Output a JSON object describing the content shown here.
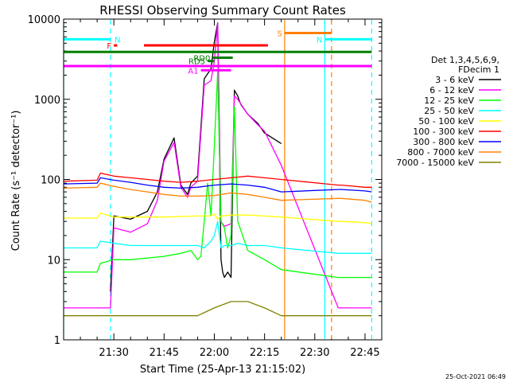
{
  "chart_data": {
    "type": "line",
    "title": "RHESSI Observing Summary Count Rates",
    "xlabel": "Start Time (25-Apr-13 21:15:02)",
    "ylabel": "Count Rate (s⁻¹ detector⁻¹)",
    "yscale": "log",
    "ylim": [
      1,
      10000
    ],
    "xlim_minutes": [
      0,
      95
    ],
    "x_ticks": [
      "21:30",
      "21:45",
      "22:00",
      "22:15",
      "22:30",
      "22:45"
    ],
    "y_ticks": [
      "1",
      "10",
      "100",
      "1000",
      "10000"
    ],
    "legend_header": [
      "Det 1,3,4,5,6,9,",
      "FDecim 1"
    ],
    "legend_position": "right",
    "footer": "25-Oct-2021 06:49",
    "series": [
      {
        "name": "3 - 6 keV",
        "color": "#000000",
        "x": [
          0,
          10,
          14,
          15,
          20,
          25,
          28,
          30,
          33,
          35,
          37,
          38,
          40,
          42,
          44,
          45,
          46,
          47,
          47.5,
          48,
          49,
          50,
          51,
          52,
          52.5,
          53,
          55,
          58,
          60,
          65
        ],
        "y": [
          null,
          null,
          4,
          35,
          32,
          40,
          70,
          180,
          330,
          85,
          65,
          90,
          110,
          1800,
          2400,
          5200,
          9000,
          10,
          7,
          6,
          7,
          6,
          1300,
          1100,
          950,
          850,
          650,
          500,
          380,
          280
        ]
      },
      {
        "name": "6 - 12 keV",
        "color": "#ff00ff",
        "x": [
          0,
          2,
          10,
          14,
          15,
          20,
          25,
          28,
          30,
          33,
          35,
          37,
          38,
          40,
          42,
          44,
          45,
          46,
          47,
          48,
          50,
          51,
          52,
          55,
          58,
          60,
          65,
          82,
          83,
          90,
          92
        ],
        "y": [
          2.5,
          2.5,
          2.5,
          2.5,
          25,
          22,
          28,
          55,
          170,
          290,
          80,
          60,
          80,
          95,
          1500,
          1700,
          3000,
          9000,
          30,
          26,
          28,
          1100,
          1000,
          650,
          480,
          400,
          150,
          2.5,
          2.5,
          2.5,
          2.5
        ]
      },
      {
        "name": "12 - 25 keV",
        "color": "#00ff00",
        "x": [
          0,
          10,
          11,
          15,
          20,
          30,
          35,
          38,
          40,
          41,
          42,
          43,
          44,
          45,
          46,
          47,
          48,
          49,
          50,
          51,
          52,
          55,
          60,
          65,
          82,
          83,
          90,
          92
        ],
        "y": [
          7,
          7,
          9,
          10,
          10,
          11,
          12,
          13,
          10,
          11,
          30,
          90,
          35,
          260,
          2200,
          30,
          25,
          14,
          20,
          800,
          30,
          13,
          10,
          7.5,
          6,
          6,
          6,
          6
        ]
      },
      {
        "name": "25 - 50 keV",
        "color": "#00ffff",
        "x": [
          0,
          10,
          11,
          15,
          20,
          30,
          40,
          42,
          44,
          45,
          46,
          47,
          48,
          50,
          52,
          55,
          60,
          65,
          82,
          83,
          90,
          92
        ],
        "y": [
          14,
          14,
          17,
          16,
          15,
          15,
          15,
          14,
          17,
          20,
          30,
          14,
          15,
          15,
          16,
          15,
          15,
          14,
          12,
          12,
          12,
          12
        ]
      },
      {
        "name": "50 - 100 keV",
        "color": "#ffff00",
        "x": [
          0,
          10,
          11,
          15,
          20,
          30,
          40,
          44,
          45,
          46,
          47,
          50,
          55,
          60,
          65,
          82,
          83,
          90,
          92
        ],
        "y": [
          33,
          33,
          38,
          34,
          34,
          34,
          35,
          35,
          37,
          32,
          35,
          36,
          36,
          35,
          34,
          30,
          30,
          29,
          28
        ]
      },
      {
        "name": "100 - 300 keV",
        "color": "#ff0000",
        "x": [
          0,
          10,
          11,
          15,
          20,
          25,
          30,
          35,
          40,
          45,
          50,
          55,
          60,
          65,
          82,
          83,
          90,
          92
        ],
        "y": [
          95,
          98,
          120,
          110,
          105,
          100,
          95,
          92,
          95,
          100,
          105,
          110,
          105,
          100,
          85,
          85,
          80,
          80
        ]
      },
      {
        "name": "300 - 800 keV",
        "color": "#0000ff",
        "x": [
          0,
          10,
          11,
          15,
          20,
          25,
          30,
          35,
          40,
          45,
          50,
          55,
          60,
          65,
          82,
          83,
          90,
          92
        ],
        "y": [
          88,
          90,
          105,
          98,
          92,
          85,
          80,
          78,
          80,
          85,
          88,
          85,
          80,
          70,
          75,
          75,
          72,
          70
        ]
      },
      {
        "name": "800 - 7000 keV",
        "color": "#ff8000",
        "x": [
          0,
          10,
          11,
          15,
          20,
          25,
          30,
          35,
          40,
          45,
          50,
          55,
          60,
          65,
          82,
          83,
          90,
          92
        ],
        "y": [
          78,
          80,
          90,
          82,
          75,
          70,
          65,
          62,
          62,
          63,
          68,
          65,
          60,
          55,
          58,
          58,
          55,
          52
        ]
      },
      {
        "name": "7000 - 15000 keV",
        "color": "#808000",
        "x": [
          0,
          5,
          10,
          15,
          20,
          25,
          30,
          35,
          40,
          45,
          50,
          55,
          60,
          65,
          82,
          83,
          90,
          92
        ],
        "y": [
          2,
          2,
          2,
          2,
          2,
          2,
          2,
          2,
          2,
          2.5,
          3,
          3,
          2.5,
          2,
          2,
          2,
          2,
          2
        ]
      }
    ],
    "flag_bars": [
      {
        "label": "N",
        "color": "#00ffff",
        "x": [
          0,
          14
        ],
        "level": 5600
      },
      {
        "label": "N",
        "color": "#00ffff",
        "x": [
          78,
          92
        ],
        "level": 5600
      },
      {
        "label": "F",
        "color": "#ff0000",
        "x": [
          15,
          16
        ],
        "level": 4700
      },
      {
        "label": "",
        "color": "#ff0000",
        "x": [
          24,
          61
        ],
        "level": 4700
      },
      {
        "label": "S",
        "color": "#ff8000",
        "x": [
          66,
          80
        ],
        "level": 6700
      },
      {
        "label": "",
        "color": "#008000",
        "x": [
          0,
          92
        ],
        "level": 3900
      },
      {
        "label": "",
        "color": "#ff00ff",
        "x": [
          0,
          92
        ],
        "level": 2600
      },
      {
        "label": "RD0",
        "color": "#008000",
        "x": [
          44.5,
          50.5
        ],
        "level": 3300
      },
      {
        "label": "RD5",
        "color": "#008000",
        "x": [
          43,
          45
        ],
        "level": 3000
      },
      {
        "label": "A1",
        "color": "#ff00ff",
        "x": [
          41,
          50
        ],
        "level": 2300
      }
    ],
    "vlines": [
      {
        "color": "#00ffff",
        "style": "solid",
        "x": 0
      },
      {
        "color": "#00ffff",
        "style": "dashed",
        "x": 14
      },
      {
        "color": "#ff8000",
        "style": "solid",
        "x": 66
      },
      {
        "color": "#00ffff",
        "style": "solid",
        "x": 78
      },
      {
        "color": "#ff8000",
        "style": "dashed",
        "x": 80
      },
      {
        "color": "#00ffff",
        "style": "dashed",
        "x": 92
      }
    ]
  }
}
